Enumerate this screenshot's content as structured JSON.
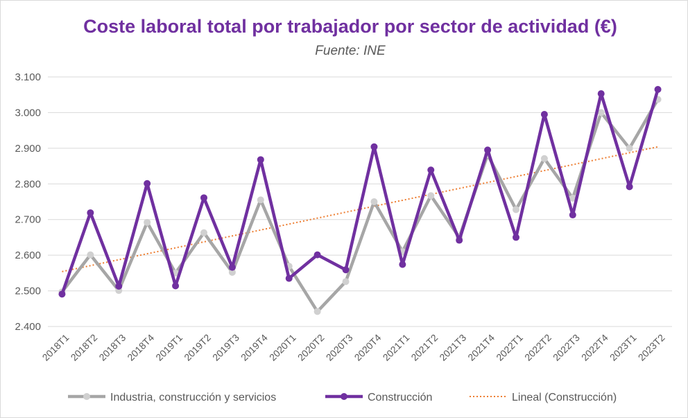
{
  "chart_data": {
    "type": "line",
    "title": "Coste laboral total por trabajador por sector de actividad (€)",
    "subtitle": "Fuente: INE",
    "xlabel": "",
    "ylabel": "",
    "ylim": [
      2400,
      3100
    ],
    "yticks": [
      2400,
      2500,
      2600,
      2700,
      2800,
      2900,
      3000,
      3100
    ],
    "ytick_labels": [
      "2.400",
      "2.500",
      "2.600",
      "2.700",
      "2.800",
      "2.900",
      "3.000",
      "3.100"
    ],
    "grid": true,
    "legend_position": "bottom",
    "categories": [
      "2018T1",
      "2018T2",
      "2018T3",
      "2018T4",
      "2019T1",
      "2019T2",
      "2019T3",
      "2019T4",
      "2020T1",
      "2020T2",
      "2020T3",
      "2020T4",
      "2021T1",
      "2021T2",
      "2021T3",
      "2021T4",
      "2022T1",
      "2022T2",
      "2022T3",
      "2022T4",
      "2023T1",
      "2023T2"
    ],
    "series": [
      {
        "name": "Industria, construcción y servicios",
        "color": "#a6a6a6",
        "marker_color": "#d0d0d0",
        "values": [
          2497,
          2601,
          2501,
          2692,
          2550,
          2663,
          2552,
          2755,
          2569,
          2442,
          2526,
          2750,
          2610,
          2767,
          2650,
          2882,
          2728,
          2871,
          2760,
          3000,
          2900,
          3037
        ]
      },
      {
        "name": "Construcción",
        "color": "#7030a0",
        "marker_color": "#7030a0",
        "values": [
          2491,
          2719,
          2513,
          2801,
          2514,
          2761,
          2566,
          2868,
          2535,
          2601,
          2559,
          2904,
          2574,
          2839,
          2642,
          2895,
          2650,
          2995,
          2713,
          3053,
          2792,
          3065
        ]
      }
    ],
    "trendline": {
      "name": "Lineal (Construcción)",
      "color": "#ed7d31",
      "start": 2554,
      "end": 2904
    }
  }
}
